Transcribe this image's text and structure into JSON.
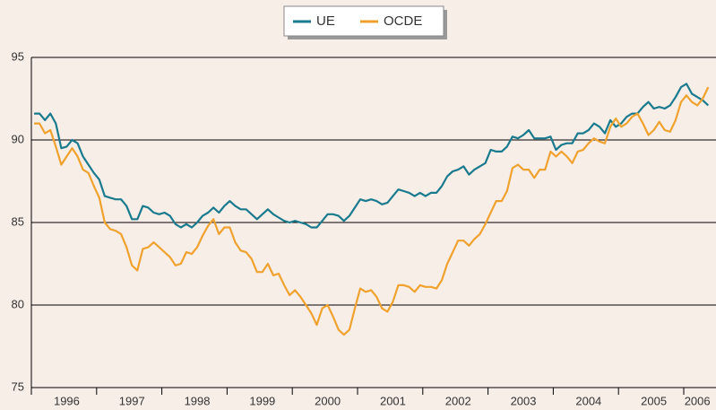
{
  "chart_data": {
    "type": "line",
    "categories": [
      null,
      null,
      null,
      null,
      null,
      null,
      "1996",
      null,
      null,
      null,
      null,
      null,
      null,
      null,
      null,
      null,
      null,
      null,
      "1997",
      null,
      null,
      null,
      null,
      null,
      null,
      null,
      null,
      null,
      null,
      null,
      "1998",
      null,
      null,
      null,
      null,
      null,
      null,
      null,
      null,
      null,
      null,
      null,
      "1999",
      null,
      null,
      null,
      null,
      null,
      null,
      null,
      null,
      null,
      null,
      null,
      "2000",
      null,
      null,
      null,
      null,
      null,
      null,
      null,
      null,
      null,
      null,
      null,
      "2001",
      null,
      null,
      null,
      null,
      null,
      null,
      null,
      null,
      null,
      null,
      null,
      "2002",
      null,
      null,
      null,
      null,
      null,
      null,
      null,
      null,
      null,
      null,
      null,
      "2003",
      null,
      null,
      null,
      null,
      null,
      null,
      null,
      null,
      null,
      null,
      null,
      "2004",
      null,
      null,
      null,
      null,
      null,
      null,
      null,
      null,
      null,
      null,
      null,
      "2005",
      null,
      null,
      null,
      null,
      null,
      null,
      null,
      "2006",
      null,
      null
    ],
    "series": [
      {
        "name": "UE",
        "color": "#1a7a8e",
        "values": [
          91.6,
          91.6,
          91.2,
          91.6,
          91.0,
          89.5,
          89.6,
          90.0,
          89.8,
          89.0,
          88.5,
          88.0,
          87.6,
          86.6,
          86.5,
          86.4,
          86.4,
          86.0,
          85.2,
          85.2,
          86.0,
          85.9,
          85.6,
          85.5,
          85.6,
          85.4,
          84.9,
          84.7,
          84.9,
          84.7,
          85.0,
          85.4,
          85.6,
          85.9,
          85.6,
          86.0,
          86.3,
          86.0,
          85.8,
          85.8,
          85.5,
          85.2,
          85.5,
          85.8,
          85.5,
          85.3,
          85.1,
          85.0,
          85.1,
          85.0,
          84.9,
          84.7,
          84.7,
          85.1,
          85.5,
          85.5,
          85.4,
          85.1,
          85.4,
          85.9,
          86.4,
          86.3,
          86.4,
          86.3,
          86.1,
          86.2,
          86.6,
          87.0,
          86.9,
          86.8,
          86.6,
          86.8,
          86.6,
          86.8,
          86.8,
          87.2,
          87.8,
          88.1,
          88.2,
          88.4,
          87.9,
          88.2,
          88.4,
          88.6,
          89.4,
          89.3,
          89.3,
          89.6,
          90.2,
          90.1,
          90.3,
          90.6,
          90.1,
          90.1,
          90.1,
          90.2,
          89.4,
          89.7,
          89.8,
          89.8,
          90.4,
          90.4,
          90.6,
          91.0,
          90.8,
          90.4,
          91.2,
          90.8,
          91.0,
          91.4,
          91.6,
          91.6,
          92.0,
          92.3,
          91.9,
          92.0,
          91.9,
          92.1,
          92.6,
          93.2,
          93.4,
          92.8,
          92.6,
          92.4,
          92.1
        ]
      },
      {
        "name": "OCDE",
        "color": "#f0a22e",
        "values": [
          91.0,
          91.0,
          90.4,
          90.6,
          89.6,
          88.5,
          89.0,
          89.5,
          89.0,
          88.2,
          88.0,
          87.2,
          86.5,
          85.0,
          84.6,
          84.5,
          84.3,
          83.5,
          82.4,
          82.1,
          83.4,
          83.5,
          83.8,
          83.5,
          83.2,
          82.9,
          82.4,
          82.5,
          83.2,
          83.1,
          83.5,
          84.2,
          84.8,
          85.2,
          84.3,
          84.7,
          84.7,
          83.8,
          83.3,
          83.2,
          82.8,
          82.0,
          82.0,
          82.5,
          81.8,
          81.9,
          81.2,
          80.6,
          80.9,
          80.5,
          80.0,
          79.5,
          78.8,
          79.8,
          80.0,
          79.3,
          78.5,
          78.2,
          78.5,
          79.8,
          81.0,
          80.8,
          80.9,
          80.5,
          79.8,
          79.6,
          80.2,
          81.2,
          81.2,
          81.1,
          80.8,
          81.2,
          81.1,
          81.1,
          81.0,
          81.5,
          82.5,
          83.2,
          83.9,
          83.9,
          83.6,
          84.0,
          84.3,
          84.9,
          85.6,
          86.3,
          86.3,
          86.9,
          88.3,
          88.5,
          88.2,
          88.2,
          87.7,
          88.2,
          88.2,
          89.3,
          89.0,
          89.3,
          89.0,
          88.6,
          89.3,
          89.4,
          89.8,
          90.1,
          89.9,
          89.8,
          90.8,
          91.3,
          90.8,
          91.0,
          91.4,
          91.6,
          91.0,
          90.3,
          90.6,
          91.1,
          90.6,
          90.5,
          91.2,
          92.3,
          92.7,
          92.3,
          92.1,
          92.5,
          93.2
        ]
      }
    ],
    "ylim": [
      75,
      95
    ],
    "yticks": [
      75,
      80,
      85,
      90,
      95
    ],
    "grid": true
  }
}
